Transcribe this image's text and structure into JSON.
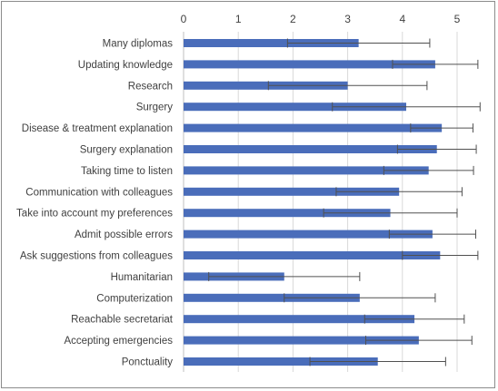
{
  "chart_data": {
    "type": "bar",
    "orientation": "horizontal",
    "title": "",
    "xlabel": "",
    "ylabel": "",
    "xlim": [
      0,
      5.5
    ],
    "x_ticks": [
      0,
      1,
      2,
      3,
      4,
      5
    ],
    "x_axis_position": "top",
    "grid": true,
    "legend": "none",
    "bar_color": "#4a6dba",
    "categories": [
      "Many diplomas",
      "Updating knowledge",
      "Research",
      "Surgery",
      "Disease & treatment explanation",
      "Surgery explanation",
      "Taking time to listen",
      "Communication with colleagues",
      "Take into account my preferences",
      "Admit possible errors",
      "Ask suggestions from colleagues",
      "Humanitarian",
      "Computerization",
      "Reachable secretariat",
      "Accepting emergencies",
      "Ponctuality"
    ],
    "values": [
      3.2,
      4.6,
      3.0,
      4.07,
      4.72,
      4.63,
      4.48,
      3.94,
      3.78,
      4.55,
      4.69,
      1.84,
      3.22,
      4.22,
      4.3,
      3.55
    ],
    "error": [
      1.3,
      0.78,
      1.45,
      1.35,
      0.57,
      0.72,
      0.82,
      1.15,
      1.22,
      0.79,
      0.69,
      1.38,
      1.38,
      0.91,
      0.97,
      1.24
    ]
  }
}
